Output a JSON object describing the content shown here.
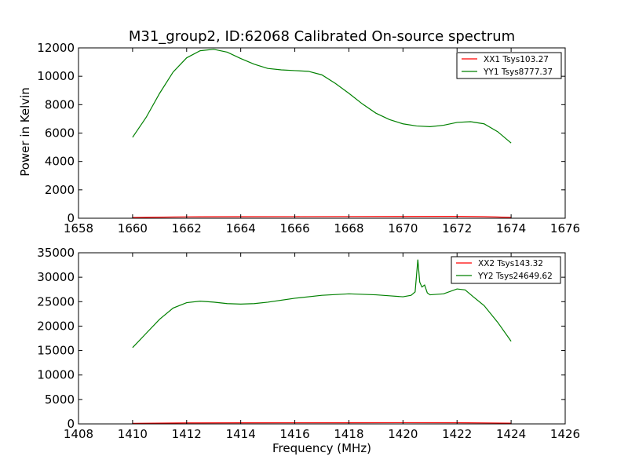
{
  "figure": {
    "title": "M31_group2, ID:62068 Calibrated On-source spectrum",
    "ylabel": "Power in Kelvin",
    "xlabel": "Frequency (MHz)"
  },
  "chart_data": [
    {
      "type": "line",
      "xlim": [
        1658,
        1676
      ],
      "ylim": [
        0,
        12000
      ],
      "xticks": [
        1658,
        1660,
        1662,
        1664,
        1666,
        1668,
        1670,
        1672,
        1674,
        1676
      ],
      "yticks": [
        0,
        2000,
        4000,
        6000,
        8000,
        10000,
        12000
      ],
      "grid": false,
      "legend": "top-right",
      "series": [
        {
          "name": "XX1 Tsys103.27",
          "color": "#ff0000",
          "x": [
            1660,
            1662,
            1664,
            1666,
            1668,
            1670,
            1672,
            1673,
            1674
          ],
          "y": [
            50,
            100,
            110,
            115,
            120,
            125,
            130,
            110,
            60
          ]
        },
        {
          "name": "YY1 Tsys8777.37",
          "color": "#008000",
          "x": [
            1660,
            1660.5,
            1661,
            1661.5,
            1662,
            1662.5,
            1663,
            1663.5,
            1664,
            1664.5,
            1665,
            1665.5,
            1666,
            1666.5,
            1667,
            1667.5,
            1668,
            1668.5,
            1669,
            1669.5,
            1670,
            1670.5,
            1671,
            1671.5,
            1672,
            1672.5,
            1673,
            1673.5,
            1674
          ],
          "y": [
            5700,
            7100,
            8800,
            10300,
            11300,
            11800,
            11900,
            11700,
            11250,
            10850,
            10550,
            10450,
            10400,
            10350,
            10100,
            9500,
            8800,
            8050,
            7400,
            6950,
            6650,
            6500,
            6450,
            6550,
            6750,
            6800,
            6650,
            6100,
            5300
          ]
        }
      ]
    },
    {
      "type": "line",
      "xlim": [
        1408,
        1426
      ],
      "ylim": [
        0,
        35000
      ],
      "xticks": [
        1408,
        1410,
        1412,
        1414,
        1416,
        1418,
        1420,
        1422,
        1424,
        1426
      ],
      "yticks": [
        0,
        5000,
        10000,
        15000,
        20000,
        25000,
        30000,
        35000
      ],
      "grid": false,
      "legend": "top-right",
      "series": [
        {
          "name": "XX2 Tsys143.32",
          "color": "#ff0000",
          "x": [
            1410,
            1412,
            1414,
            1416,
            1418,
            1420,
            1422,
            1424
          ],
          "y": [
            100,
            200,
            220,
            230,
            240,
            250,
            240,
            150
          ]
        },
        {
          "name": "YY2 Tsys24649.62",
          "color": "#008000",
          "x": [
            1410,
            1410.5,
            1411,
            1411.5,
            1412,
            1412.5,
            1413,
            1413.5,
            1414,
            1414.5,
            1415,
            1416,
            1417,
            1418,
            1419,
            1419.5,
            1420,
            1420.3,
            1420.45,
            1420.55,
            1420.62,
            1420.7,
            1420.8,
            1420.9,
            1421,
            1421.5,
            1422,
            1422.3,
            1422.6,
            1423,
            1423.5,
            1424
          ],
          "y": [
            15600,
            18500,
            21400,
            23700,
            24800,
            25100,
            24900,
            24600,
            24500,
            24600,
            24900,
            25700,
            26300,
            26600,
            26400,
            26200,
            26000,
            26300,
            27000,
            33600,
            29000,
            28000,
            28400,
            26800,
            26400,
            26600,
            27600,
            27400,
            26000,
            24200,
            20800,
            16900
          ]
        }
      ]
    }
  ]
}
